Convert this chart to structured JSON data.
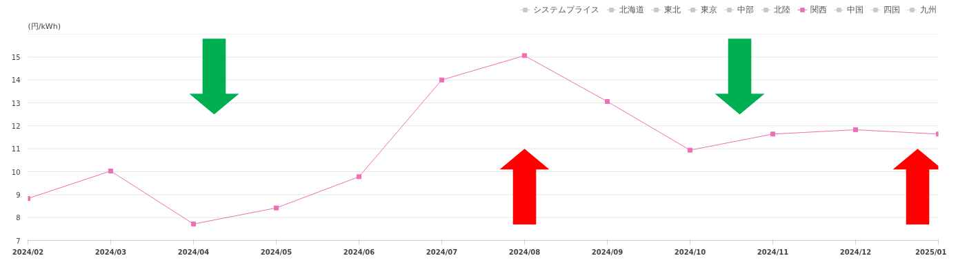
{
  "chart_data": {
    "type": "line",
    "ylabel": "(円/kWh)",
    "categories": [
      "2024/02",
      "2024/03",
      "2024/04",
      "2024/05",
      "2024/06",
      "2024/07",
      "2024/08",
      "2024/09",
      "2024/10",
      "2024/11",
      "2024/12",
      "2025/01"
    ],
    "series": [
      {
        "name": "システムプライス",
        "color": "#c8c8c8",
        "values": [
          null,
          null,
          null,
          null,
          null,
          null,
          null,
          null,
          null,
          null,
          null,
          null
        ]
      },
      {
        "name": "北海道",
        "color": "#c8c8c8",
        "values": [
          null,
          null,
          null,
          null,
          null,
          null,
          null,
          null,
          null,
          null,
          null,
          null
        ]
      },
      {
        "name": "東北",
        "color": "#c8c8c8",
        "values": [
          null,
          null,
          null,
          null,
          null,
          null,
          null,
          null,
          null,
          null,
          null,
          null
        ]
      },
      {
        "name": "東京",
        "color": "#c8c8c8",
        "values": [
          null,
          null,
          null,
          null,
          null,
          null,
          null,
          null,
          null,
          null,
          null,
          null
        ]
      },
      {
        "name": "中部",
        "color": "#c8c8c8",
        "values": [
          null,
          null,
          null,
          null,
          null,
          null,
          null,
          null,
          null,
          null,
          null,
          null
        ]
      },
      {
        "name": "北陸",
        "color": "#c8c8c8",
        "values": [
          null,
          null,
          null,
          null,
          null,
          null,
          null,
          null,
          null,
          null,
          null,
          null
        ]
      },
      {
        "name": "関西",
        "color": "#f06eb4",
        "values": [
          8.83,
          10.03,
          7.72,
          8.42,
          9.78,
          14.0,
          15.06,
          13.06,
          10.94,
          11.64,
          11.83,
          11.64
        ]
      },
      {
        "name": "中国",
        "color": "#c8c8c8",
        "values": [
          null,
          null,
          null,
          null,
          null,
          null,
          null,
          null,
          null,
          null,
          null,
          null
        ]
      },
      {
        "name": "四国",
        "color": "#c8c8c8",
        "values": [
          null,
          null,
          null,
          null,
          null,
          null,
          null,
          null,
          null,
          null,
          null,
          null
        ]
      },
      {
        "name": "九州",
        "color": "#c8c8c8",
        "values": [
          null,
          null,
          null,
          null,
          null,
          null,
          null,
          null,
          null,
          null,
          null,
          null
        ]
      }
    ],
    "ylim": [
      7,
      16
    ],
    "yticks": [
      7,
      8,
      9,
      10,
      11,
      12,
      13,
      14,
      15,
      {
        "value": 16,
        "label": null
      }
    ],
    "grid": "y",
    "legend": "top right",
    "marker": "square",
    "line_style": "solid"
  }
}
